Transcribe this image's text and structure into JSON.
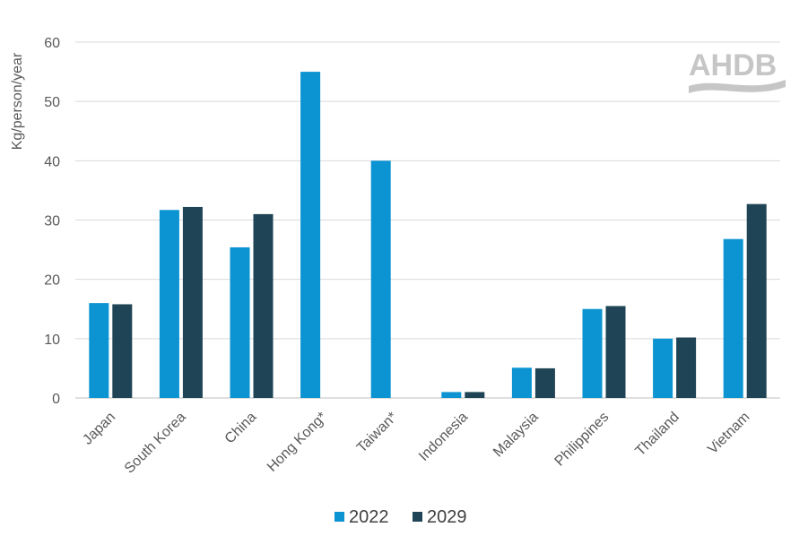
{
  "chart_data": {
    "type": "bar",
    "title": "",
    "xlabel": "",
    "ylabel": "Kg/person/year",
    "ylim": [
      0,
      60
    ],
    "yticks": [
      0,
      10,
      20,
      30,
      40,
      50,
      60
    ],
    "grid": true,
    "legend_position": "bottom",
    "categories": [
      "Japan",
      "South Korea",
      "China",
      "Hong Kong*",
      "Taiwan*",
      "Indonesia",
      "Malaysia",
      "Philippines",
      "Thailand",
      "Vietnam"
    ],
    "series": [
      {
        "name": "2022",
        "color": "#0b93d2",
        "values": [
          16,
          31.7,
          25.4,
          55,
          40,
          1,
          5.1,
          15,
          10,
          26.8
        ]
      },
      {
        "name": "2029",
        "color": "#1f4455",
        "values": [
          15.8,
          32.2,
          31,
          null,
          null,
          1,
          5,
          15.5,
          10.2,
          32.7
        ]
      }
    ]
  },
  "logo": {
    "text": "AHDB"
  }
}
